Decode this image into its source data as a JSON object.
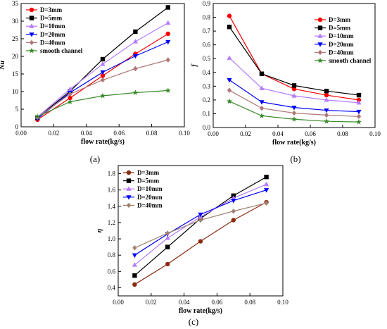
{
  "chart_data": [
    {
      "panel": "(a)",
      "type": "line",
      "xlabel": "flow rate(kg/s)",
      "ylabel": "Nu",
      "xlim": [
        0.0,
        0.1
      ],
      "ylim": [
        0,
        35
      ],
      "xticks": [
        "0.00",
        "0.02",
        "0.04",
        "0.06",
        "0.08",
        "0.10"
      ],
      "yticks": [
        "0",
        "5",
        "10",
        "15",
        "20",
        "25",
        "30",
        "35"
      ],
      "legend_position": "top-left",
      "x": [
        0.01,
        0.03,
        0.05,
        0.07,
        0.09
      ],
      "series": [
        {
          "name": "D=3mm",
          "color": "#ff0000",
          "marker": "circle",
          "values": [
            2.0,
            8.2,
            14.5,
            20.7,
            26.4
          ]
        },
        {
          "name": "D=5mm",
          "color": "#000000",
          "marker": "square",
          "values": [
            2.6,
            10.1,
            19.2,
            27.0,
            33.9
          ]
        },
        {
          "name": "D=10mm",
          "color": "#b57bff",
          "marker": "triangle-up",
          "values": [
            2.8,
            10.7,
            17.8,
            24.2,
            29.5
          ]
        },
        {
          "name": "D=20mm",
          "color": "#0000ff",
          "marker": "triangle-down",
          "values": [
            2.3,
            9.7,
            15.5,
            20.1,
            24.1
          ]
        },
        {
          "name": "D=40mm",
          "color": "#b07878",
          "marker": "diamond",
          "values": [
            2.7,
            9.3,
            13.3,
            16.5,
            19.0
          ]
        },
        {
          "name": "smooth channel",
          "color": "#3a8a2a",
          "marker": "star",
          "values": [
            2.9,
            7.1,
            8.8,
            9.7,
            10.3
          ]
        }
      ]
    },
    {
      "panel": "(b)",
      "type": "line",
      "xlabel": "flow rate(kg/s)",
      "ylabel": "f",
      "xlim": [
        0.0,
        0.1
      ],
      "ylim": [
        0.0,
        0.9
      ],
      "xticks": [
        "0.00",
        "0.02",
        "0.04",
        "0.06",
        "0.08",
        "0.10"
      ],
      "yticks": [
        "0.0",
        "0.1",
        "0.2",
        "0.3",
        "0.4",
        "0.5",
        "0.6",
        "0.7",
        "0.8",
        "0.9"
      ],
      "legend_position": "top-right",
      "x": [
        0.01,
        0.03,
        0.05,
        0.07,
        0.09
      ],
      "series": [
        {
          "name": "D=3mm",
          "color": "#ff0000",
          "marker": "circle",
          "values": [
            0.81,
            0.39,
            0.28,
            0.235,
            0.2
          ]
        },
        {
          "name": "D=5mm",
          "color": "#000000",
          "marker": "square",
          "values": [
            0.73,
            0.39,
            0.305,
            0.265,
            0.235
          ]
        },
        {
          "name": "D=10mm",
          "color": "#b57bff",
          "marker": "triangle-up",
          "values": [
            0.505,
            0.285,
            0.23,
            0.2,
            0.18
          ]
        },
        {
          "name": "D=20mm",
          "color": "#0000ff",
          "marker": "triangle-down",
          "values": [
            0.345,
            0.185,
            0.145,
            0.125,
            0.115
          ]
        },
        {
          "name": "D=40mm",
          "color": "#b07878",
          "marker": "diamond",
          "values": [
            0.27,
            0.14,
            0.105,
            0.09,
            0.08
          ]
        },
        {
          "name": "smooth channel",
          "color": "#3a8a2a",
          "marker": "star",
          "values": [
            0.19,
            0.085,
            0.06,
            0.045,
            0.04
          ]
        }
      ]
    },
    {
      "panel": "(c)",
      "type": "line",
      "xlabel": "flow rate(kg/s)",
      "ylabel": "η",
      "xlim": [
        0.0,
        0.1
      ],
      "ylim": [
        0.3,
        1.9
      ],
      "xticks": [
        "0.00",
        "0.02",
        "0.04",
        "0.06",
        "0.08",
        "0.10"
      ],
      "yticks": [
        "0.4",
        "0.6",
        "0.8",
        "1.0",
        "1.2",
        "1.4",
        "1.6",
        "1.8"
      ],
      "legend_position": "top-left",
      "x": [
        0.01,
        0.03,
        0.05,
        0.07,
        0.09
      ],
      "series": [
        {
          "name": "D=3mm",
          "color": "#8b2a10",
          "marker": "circle",
          "values": [
            0.44,
            0.69,
            0.97,
            1.23,
            1.45
          ]
        },
        {
          "name": "D=5mm",
          "color": "#000000",
          "marker": "square",
          "values": [
            0.55,
            0.9,
            1.25,
            1.53,
            1.76
          ]
        },
        {
          "name": "D=10mm",
          "color": "#b57bff",
          "marker": "triangle-up",
          "values": [
            0.68,
            1.01,
            1.27,
            1.5,
            1.67
          ]
        },
        {
          "name": "D=20mm",
          "color": "#0000ff",
          "marker": "triangle-down",
          "values": [
            0.8,
            1.06,
            1.3,
            1.47,
            1.6
          ]
        },
        {
          "name": "D=40mm",
          "color": "#a08270",
          "marker": "diamond",
          "values": [
            0.89,
            1.07,
            1.23,
            1.34,
            1.44
          ]
        }
      ]
    }
  ]
}
